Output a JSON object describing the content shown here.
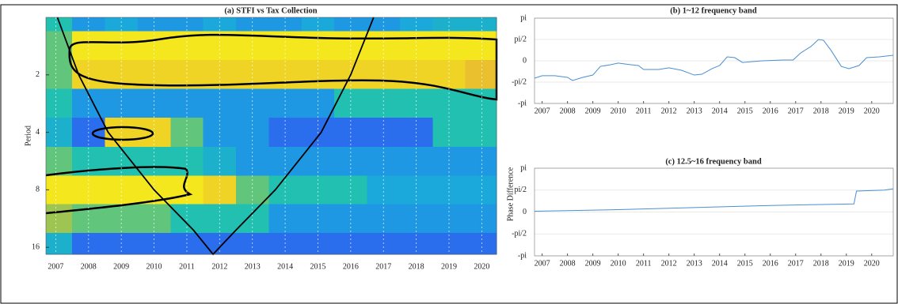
{
  "chart_data": [
    {
      "type": "heatmap",
      "title": "(a) STFI vs Tax Collection",
      "ylabel": "Period",
      "x": [
        2007,
        2008,
        2009,
        2010,
        2011,
        2012,
        2013,
        2014,
        2015,
        2016,
        2017,
        2018,
        2019,
        2020
      ],
      "y": [
        1,
        1.4,
        2,
        2.8,
        4,
        5.7,
        8,
        11.3,
        16
      ],
      "z": [
        [
          0.5,
          0.3,
          0.35,
          0.3,
          0.3,
          0.35,
          0.3,
          0.3,
          0.35,
          0.3,
          0.3,
          0.35,
          0.4,
          0.4
        ],
        [
          0.6,
          0.95,
          0.95,
          0.95,
          0.95,
          0.95,
          0.95,
          0.95,
          0.95,
          0.95,
          0.95,
          0.95,
          0.95,
          0.95
        ],
        [
          0.6,
          0.9,
          0.9,
          0.9,
          0.9,
          0.9,
          0.9,
          0.9,
          0.9,
          0.9,
          0.9,
          0.9,
          0.9,
          0.85
        ],
        [
          0.5,
          0.3,
          0.3,
          0.3,
          0.3,
          0.3,
          0.3,
          0.3,
          0.3,
          0.5,
          0.5,
          0.5,
          0.5,
          0.5
        ],
        [
          0.4,
          0.2,
          0.9,
          0.9,
          0.6,
          0.3,
          0.3,
          0.2,
          0.2,
          0.2,
          0.2,
          0.2,
          0.5,
          0.5
        ],
        [
          0.6,
          0.5,
          0.5,
          0.5,
          0.5,
          0.4,
          0.3,
          0.3,
          0.3,
          0.3,
          0.3,
          0.3,
          0.3,
          0.3
        ],
        [
          0.95,
          0.95,
          0.95,
          0.95,
          0.95,
          0.9,
          0.6,
          0.5,
          0.5,
          0.5,
          0.35,
          0.35,
          0.35,
          0.35
        ],
        [
          0.7,
          0.6,
          0.6,
          0.6,
          0.5,
          0.5,
          0.5,
          0.3,
          0.3,
          0.3,
          0.3,
          0.3,
          0.3,
          0.3
        ],
        [
          0.4,
          0.2,
          0.2,
          0.2,
          0.2,
          0.2,
          0.2,
          0.2,
          0.2,
          0.2,
          0.2,
          0.2,
          0.2,
          0.2
        ]
      ],
      "zlim": [
        0,
        1
      ],
      "colormap": [
        "#3b2ba5",
        "#2e5ff0",
        "#1aa6e0",
        "#22c0b0",
        "#8cc85a",
        "#e8ba32",
        "#f9fb15"
      ],
      "cone_x": [
        2007.05,
        2007.7,
        2008.6,
        2010.0,
        2011.2,
        2011.8,
        2012.5,
        2013.7,
        2015.1,
        2016.0,
        2016.7
      ],
      "cone_y": [
        1,
        2,
        4,
        8,
        13,
        17.4,
        13,
        8,
        4,
        2,
        1
      ],
      "xlim": [
        2006.7,
        2020.45
      ],
      "ylim": [
        1,
        17.4
      ],
      "ylog": true,
      "yreverse": true,
      "xticks": [
        2007,
        2008,
        2009,
        2010,
        2011,
        2012,
        2013,
        2014,
        2015,
        2016,
        2017,
        2018,
        2019,
        2020
      ],
      "yticks": [
        2,
        4,
        8,
        16
      ],
      "grid": true
    },
    {
      "type": "line",
      "title": "(b) 1~12 frequency band",
      "color": "#4a8fd0",
      "x": [
        2006.7,
        2007,
        2007.5,
        2008,
        2008.2,
        2008.6,
        2009,
        2009.3,
        2009.7,
        2010,
        2010.5,
        2010.8,
        2011,
        2011.6,
        2012,
        2012.5,
        2013,
        2013.3,
        2013.7,
        2014,
        2014.3,
        2014.6,
        2014.9,
        2015.3,
        2015.7,
        2016.5,
        2016.9,
        2017.2,
        2017.6,
        2017.9,
        2018.1,
        2018.4,
        2018.8,
        2019.1,
        2019.5,
        2019.8,
        2020.3,
        2020.85
      ],
      "values": [
        -1.28,
        -1.1,
        -1.1,
        -1.22,
        -1.45,
        -1.22,
        -1.05,
        -0.41,
        -0.29,
        -0.17,
        -0.29,
        -0.35,
        -0.64,
        -0.64,
        -0.52,
        -0.7,
        -1.05,
        -0.99,
        -0.58,
        -0.35,
        0.29,
        0.23,
        -0.12,
        -0.06,
        0,
        0.06,
        0.06,
        0.58,
        1.05,
        1.57,
        1.51,
        0.76,
        -0.41,
        -0.58,
        -0.35,
        0.23,
        0.29,
        0.41
      ],
      "xlim": [
        2006.7,
        2020.85
      ],
      "ylim": [
        -3.1416,
        3.1416
      ],
      "xticks": [
        2007,
        2008,
        2009,
        2010,
        2011,
        2012,
        2013,
        2014,
        2015,
        2016,
        2017,
        2018,
        2019,
        2020
      ],
      "yticks": [
        {
          "value": -3.1416,
          "label": "-pi"
        },
        {
          "value": -1.5708,
          "label": "-pi/2"
        },
        0,
        {
          "value": 1.5708,
          "label": "pi/2"
        },
        {
          "value": 3.1416,
          "label": "pi"
        }
      ],
      "grid": true
    },
    {
      "type": "line",
      "title": "(c) 12.5~16 frequency band",
      "ylabel": "Phase Difference",
      "color": "#4a8fd0",
      "x": [
        2006.7,
        2010,
        2013,
        2016,
        2019.3,
        2019.4,
        2020.5,
        2020.85
      ],
      "values": [
        0.06,
        0.17,
        0.32,
        0.47,
        0.58,
        1.5,
        1.57,
        1.66
      ],
      "xlim": [
        2006.7,
        2020.85
      ],
      "ylim": [
        -3.1416,
        3.1416
      ],
      "xticks": [
        2007,
        2008,
        2009,
        2010,
        2011,
        2012,
        2013,
        2014,
        2015,
        2016,
        2017,
        2018,
        2019,
        2020
      ],
      "yticks": [
        {
          "value": -3.1416,
          "label": "-pi"
        },
        {
          "value": -1.5708,
          "label": "-pi/2"
        },
        0,
        {
          "value": 1.5708,
          "label": "pi/2"
        },
        {
          "value": 3.1416,
          "label": "pi"
        }
      ],
      "grid": true
    }
  ]
}
